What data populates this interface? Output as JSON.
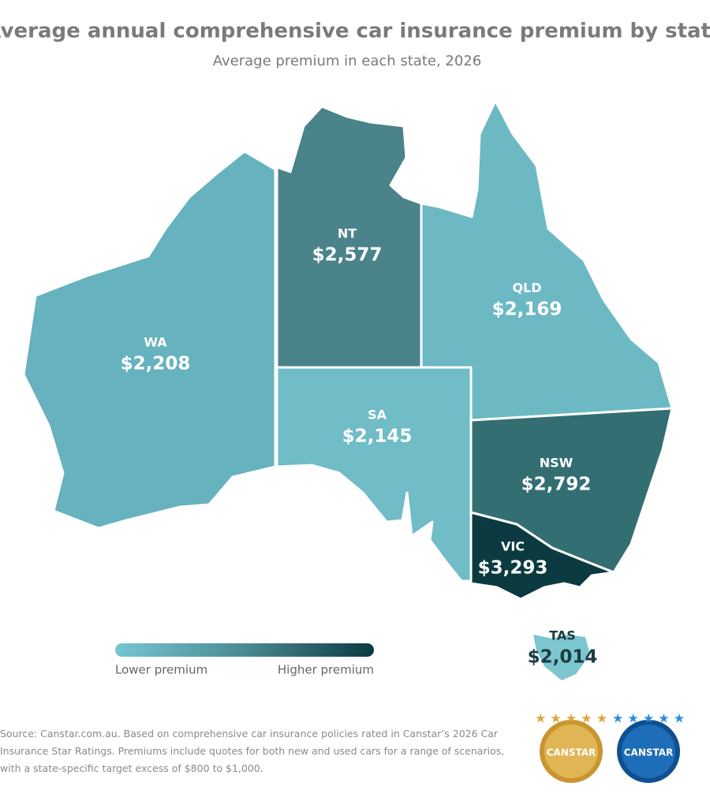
{
  "chart_data": {
    "type": "choropleth",
    "title": "Average annual comprehensive car insurance premium by state",
    "subtitle": "Average premium in each state, 2026",
    "regions": [
      {
        "name": "WA",
        "value": 2208,
        "value_label": "$2,208",
        "color": "#66b2be"
      },
      {
        "name": "NT",
        "value": 2577,
        "value_label": "$2,577",
        "color": "#4a838a"
      },
      {
        "name": "QLD",
        "value": 2169,
        "value_label": "$2,169",
        "color": "#6cb9c4"
      },
      {
        "name": "SA",
        "value": 2145,
        "value_label": "$2,145",
        "color": "#70bcc7"
      },
      {
        "name": "NSW",
        "value": 2792,
        "value_label": "$2,792",
        "color": "#336e73"
      },
      {
        "name": "VIC",
        "value": 3293,
        "value_label": "$3,293",
        "color": "#0b3a41"
      },
      {
        "name": "TAS",
        "value": 2014,
        "value_label": "$2,014",
        "color": "#7cc6d0"
      }
    ],
    "legend": {
      "low_label": "Lower premium",
      "high_label": "Higher premium"
    },
    "source": "Source: Canstar.com.au. Based on comprehensive car insurance policies rated in Canstar’s 2026 Car Insurance Star Ratings. Premiums include quotes for both new and used cars for a range of scenarios, with a state-specific target excess of $800 to $1,000.",
    "logos": [
      "CANSTAR",
      "CANSTAR"
    ]
  }
}
